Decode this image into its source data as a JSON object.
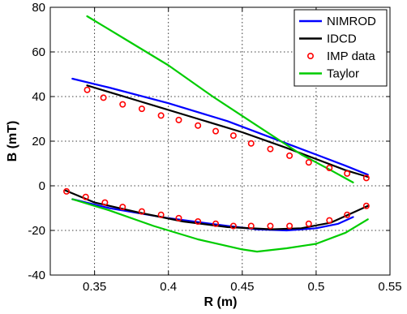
{
  "chart_data": {
    "type": "line",
    "xlabel": "R (m)",
    "ylabel": "B (mT)",
    "xlim": [
      0.32,
      0.55
    ],
    "ylim": [
      -40,
      80
    ],
    "xticks": [
      "0.35",
      "0.4",
      "0.45",
      "0.5",
      "0.55"
    ],
    "yticks": [
      "-40",
      "-20",
      "0",
      "20",
      "40",
      "60",
      "80"
    ],
    "grid": true,
    "legend_position": "top-right",
    "series": [
      {
        "name": "NIMROD",
        "color": "#0000ff",
        "style": "line",
        "segments": [
          [
            [
              0.335,
              48
            ],
            [
              0.36,
              44
            ],
            [
              0.4,
              37
            ],
            [
              0.44,
              29
            ],
            [
              0.48,
              19
            ],
            [
              0.5,
              14
            ],
            [
              0.52,
              9
            ],
            [
              0.535,
              5
            ]
          ],
          [
            [
              0.335,
              -6
            ],
            [
              0.36,
              -10
            ],
            [
              0.4,
              -14.5
            ],
            [
              0.44,
              -18
            ],
            [
              0.46,
              -19.5
            ],
            [
              0.48,
              -20
            ],
            [
              0.5,
              -19
            ],
            [
              0.515,
              -17
            ],
            [
              0.525,
              -14
            ]
          ]
        ]
      },
      {
        "name": "IDCD",
        "color": "#000000",
        "style": "line",
        "segments": [
          [
            [
              0.345,
              45
            ],
            [
              0.38,
              38
            ],
            [
              0.42,
              30
            ],
            [
              0.45,
              24
            ],
            [
              0.48,
              17
            ],
            [
              0.5,
              12
            ],
            [
              0.52,
              7
            ],
            [
              0.535,
              4
            ]
          ],
          [
            [
              0.33,
              -2
            ],
            [
              0.35,
              -7.5
            ],
            [
              0.38,
              -12
            ],
            [
              0.41,
              -16
            ],
            [
              0.44,
              -18.5
            ],
            [
              0.47,
              -19.5
            ],
            [
              0.49,
              -19
            ],
            [
              0.51,
              -16.5
            ],
            [
              0.535,
              -9
            ]
          ]
        ]
      },
      {
        "name": "IMP data",
        "color": "#ff0000",
        "style": "marker",
        "points": [
          [
            0.345,
            43
          ],
          [
            0.356,
            39.5
          ],
          [
            0.369,
            36.5
          ],
          [
            0.382,
            34.5
          ],
          [
            0.395,
            31.5
          ],
          [
            0.407,
            29.5
          ],
          [
            0.42,
            27
          ],
          [
            0.432,
            24.5
          ],
          [
            0.444,
            22.5
          ],
          [
            0.456,
            19
          ],
          [
            0.469,
            16.5
          ],
          [
            0.482,
            13.5
          ],
          [
            0.495,
            10.5
          ],
          [
            0.509,
            8
          ],
          [
            0.521,
            5.5
          ],
          [
            0.534,
            3.5
          ],
          [
            0.331,
            -2.5
          ],
          [
            0.344,
            -5
          ],
          [
            0.357,
            -7.5
          ],
          [
            0.369,
            -9.5
          ],
          [
            0.382,
            -11.5
          ],
          [
            0.395,
            -13
          ],
          [
            0.407,
            -14.5
          ],
          [
            0.42,
            -16
          ],
          [
            0.432,
            -17
          ],
          [
            0.444,
            -18
          ],
          [
            0.456,
            -18
          ],
          [
            0.469,
            -18
          ],
          [
            0.482,
            -18
          ],
          [
            0.495,
            -17
          ],
          [
            0.509,
            -15.5
          ],
          [
            0.521,
            -13
          ],
          [
            0.534,
            -9
          ]
        ]
      },
      {
        "name": "Taylor",
        "color": "#00cc00",
        "style": "line",
        "segments": [
          [
            [
              0.345,
              76
            ],
            [
              0.37,
              66
            ],
            [
              0.4,
              54
            ],
            [
              0.43,
              40
            ],
            [
              0.46,
              27
            ],
            [
              0.49,
              14
            ],
            [
              0.51,
              7
            ],
            [
              0.525,
              1.5
            ]
          ],
          [
            [
              0.335,
              -6
            ],
            [
              0.36,
              -11
            ],
            [
              0.39,
              -18
            ],
            [
              0.42,
              -24
            ],
            [
              0.45,
              -28.5
            ],
            [
              0.46,
              -29.5
            ],
            [
              0.48,
              -28
            ],
            [
              0.5,
              -26
            ],
            [
              0.52,
              -21
            ],
            [
              0.535,
              -15
            ]
          ]
        ]
      }
    ]
  }
}
